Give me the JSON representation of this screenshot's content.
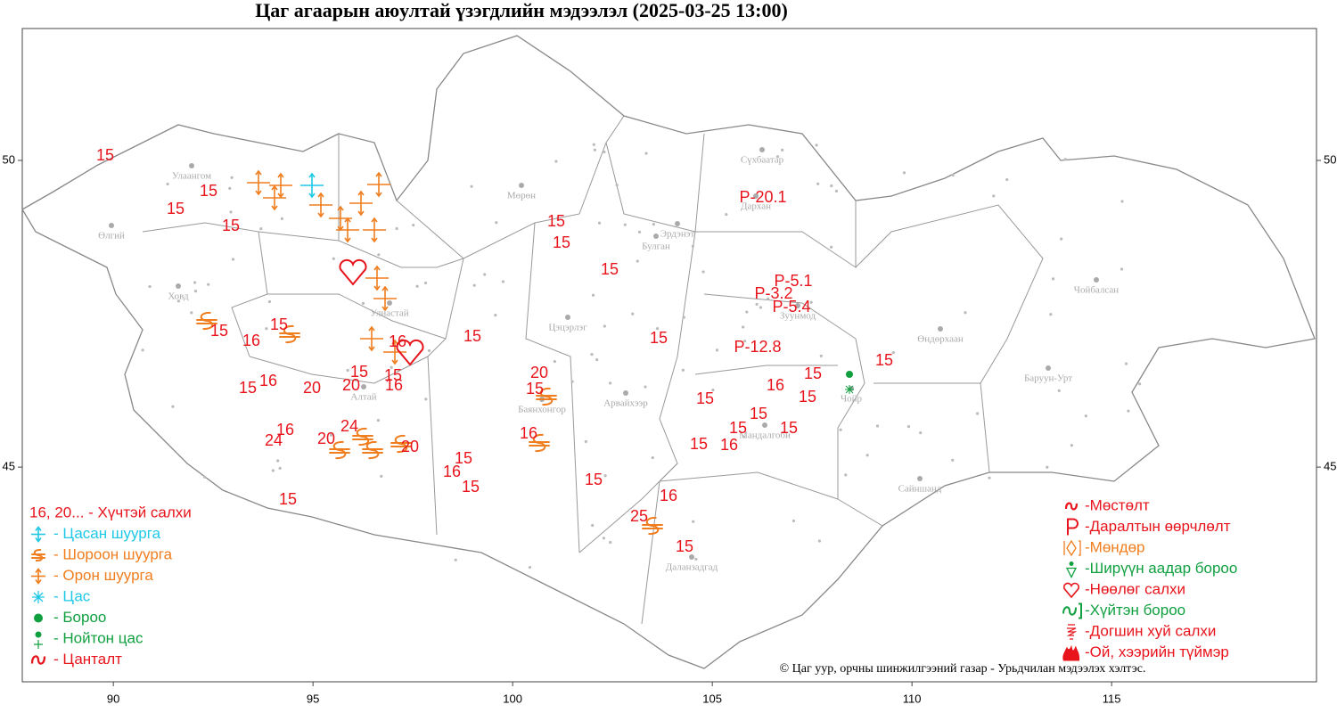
{
  "title": "Цаг агаарын аюултай үзэгдлийн мэдээлэл (2025-03-25 13:00)",
  "map": {
    "xlim": [
      87.72,
      120.13
    ],
    "ylim": [
      41.5,
      52.15
    ],
    "xticks": [
      90,
      95,
      100,
      105,
      110,
      115
    ],
    "yticks": [
      45,
      50
    ]
  },
  "cities": [
    "Улаангом",
    "Өлгий",
    "Ховд",
    "Улиастай",
    "Алтай",
    "Мөрөн",
    "Эрдэнэт",
    "Булган",
    "Цэцэрлэг",
    "Баянхонгор",
    "Арвайхээр",
    "Даланзадгад",
    "Мандалгоби",
    "Сүхбаатар",
    "Дархан",
    "Зуунмод",
    "Чойбалсан",
    "Өндөрхаан",
    "Баруун-Урт",
    "Сайншанд",
    "Чойр"
  ],
  "wind_labels": [
    "15",
    "15",
    "15",
    "15",
    "15",
    "15",
    "15",
    "15",
    "16",
    "15",
    "15",
    "15",
    "16",
    "15",
    "15",
    "15",
    "20",
    "16",
    "15",
    "20",
    "20",
    "16",
    "15",
    "15",
    "16",
    "15",
    "15",
    "15",
    "15",
    "15",
    "16",
    "24",
    "24",
    "20",
    "16",
    "15",
    "16",
    "20",
    "15",
    "16",
    "15",
    "15",
    "16",
    "15",
    "25",
    "15"
  ],
  "pressure_labels": [
    "P-20.1",
    "P-5.1",
    "P-3.2",
    "P-5.4",
    "P-12.8"
  ],
  "legend_left": [
    "16, 20... - Хүчтэй салхи",
    "- Цасан шуурга",
    "- Шороон шуурга",
    "- Орон шуурга",
    "- Цас",
    "- Бороо",
    "- Нойтон цас",
    "- Цанталт"
  ],
  "legend_right": [
    "-Мөстөлт",
    "-Даралтын өөрчлөлт",
    "-Мөндөр",
    "-Ширүүн аадар бороо",
    "-Нөөлөг салхи",
    "-Хүйтэн бороо",
    "-Догшин хуй салхи",
    "-Ой, хээрийн түймэр"
  ],
  "credit": "© Цаг уур, орчны шинжилгээний газар - Урьдчилан мэдээлэх хэлтэс."
}
